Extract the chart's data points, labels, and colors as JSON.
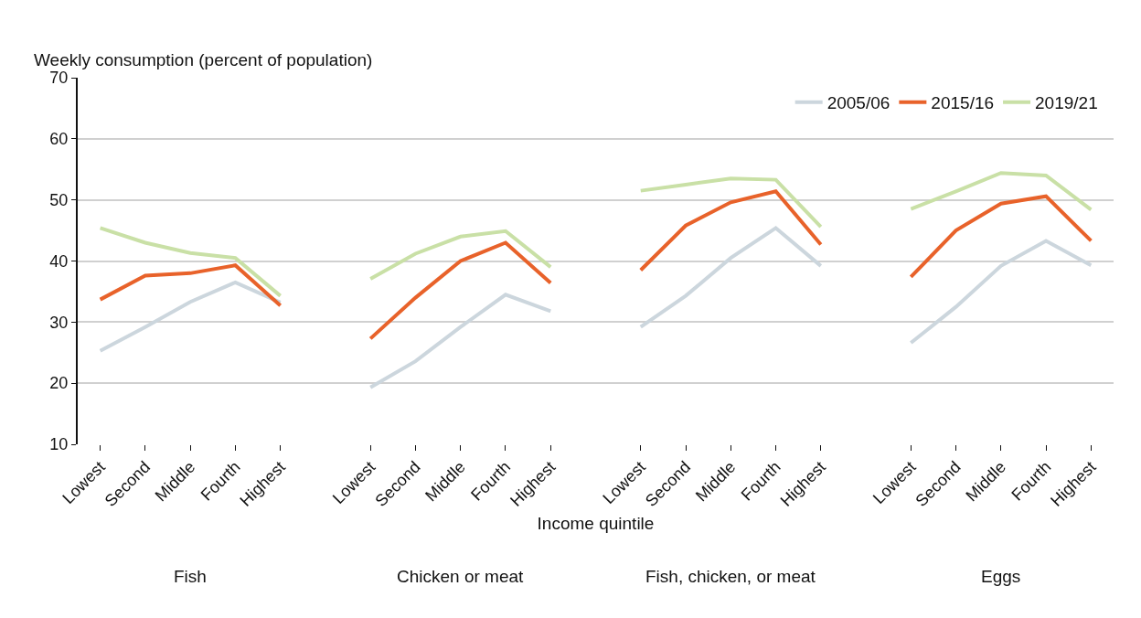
{
  "chart_data": {
    "type": "line",
    "ylabel": "Weekly consumption (percent of population)",
    "xlabel": "Income quintile",
    "categories": [
      "Lowest",
      "Second",
      "Middle",
      "Fourth",
      "Highest",
      null,
      "Lowest",
      "Second",
      "Middle",
      "Fourth",
      "Highest",
      null,
      "Lowest",
      "Second",
      "Middle",
      "Fourth",
      "Highest",
      null,
      "Lowest",
      "Second",
      "Middle",
      "Fourth",
      "Highest"
    ],
    "series": [
      {
        "name": "2005/06",
        "color": "#ccd6dd",
        "values": [
          25.3,
          29.2,
          33.3,
          36.5,
          33.2,
          null,
          19.3,
          23.6,
          29.2,
          34.5,
          31.8,
          null,
          29.2,
          34.3,
          40.5,
          45.4,
          39.2,
          null,
          26.6,
          32.5,
          39.2,
          43.3,
          39.3
        ]
      },
      {
        "name": "2015/16",
        "color": "#e8622a",
        "values": [
          33.7,
          37.6,
          38.0,
          39.3,
          32.7,
          null,
          27.3,
          34.0,
          40.0,
          43.0,
          36.4,
          null,
          38.5,
          45.8,
          49.6,
          51.4,
          42.7,
          null,
          37.4,
          45.0,
          49.4,
          50.6,
          43.3
        ]
      },
      {
        "name": "2019/21",
        "color": "#c9e0a6",
        "values": [
          45.4,
          43.0,
          41.3,
          40.5,
          34.3,
          null,
          37.1,
          41.2,
          44.0,
          44.9,
          39.0,
          null,
          51.5,
          52.5,
          53.5,
          53.3,
          45.6,
          null,
          48.5,
          51.4,
          54.4,
          54.0,
          48.4
        ]
      }
    ],
    "annotations": [
      "Fish",
      "Chicken or meat",
      "Fish, chicken, or meat",
      "Eggs"
    ],
    "ylim": [
      10,
      70
    ],
    "yticks": [
      10,
      20,
      30,
      40,
      50,
      60,
      70
    ],
    "grid": "y",
    "legend": "top right",
    "marker": "none",
    "line_style": "solid"
  }
}
